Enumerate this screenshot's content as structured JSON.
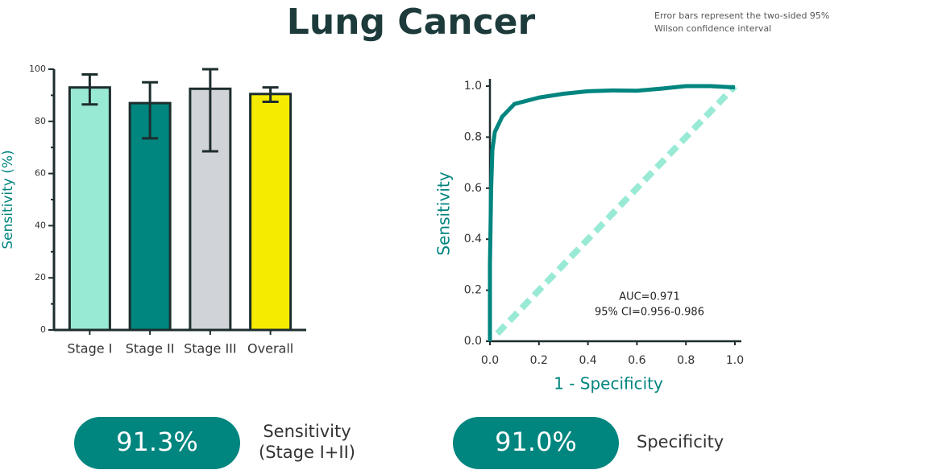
{
  "title": "Lung Cancer",
  "note": "Error bars represent the two-sided 95% Wilson confidence interval",
  "chart_data": [
    {
      "type": "bar",
      "ylabel": "Sensitivity (%)",
      "categories": [
        "Stage I",
        "Stage II",
        "Stage III",
        "Overall"
      ],
      "values": [
        93,
        87,
        92.5,
        90.5
      ],
      "ci_low": [
        86.5,
        73.5,
        68.5,
        87.5
      ],
      "ci_high": [
        98,
        95,
        100,
        93
      ],
      "colors": [
        "#99ead5",
        "#00857f",
        "#d0d3d8",
        "#f5eb00"
      ],
      "ylim": [
        0,
        100
      ],
      "yticks": [
        0,
        20,
        40,
        60,
        80,
        100
      ],
      "minor_yticks": [
        10,
        30,
        50,
        70,
        90
      ]
    },
    {
      "type": "line",
      "xlabel": "1 - Specificity",
      "ylabel": "Sensitivity",
      "series": [
        {
          "color": "#00857f",
          "dashed": false,
          "x": [
            0,
            0,
            0.005,
            0.01,
            0.02,
            0.05,
            0.1,
            0.2,
            0.3,
            0.4,
            0.5,
            0.6,
            0.7,
            0.8,
            0.9,
            1.0
          ],
          "values": [
            0,
            0.3,
            0.6,
            0.75,
            0.82,
            0.88,
            0.93,
            0.955,
            0.97,
            0.98,
            0.983,
            0.982,
            0.99,
            1.0,
            1.0,
            0.995
          ]
        },
        {
          "color": "#99ead5",
          "dashed": true,
          "x": [
            0.03,
            1.0
          ],
          "values": [
            0.03,
            1.0
          ]
        }
      ],
      "annotations": [
        "AUC=0.971",
        "95% CI=0.956-0.986"
      ],
      "xlim": [
        0,
        1
      ],
      "ylim": [
        0,
        1
      ],
      "xticks": [
        {
          "value": 0,
          "label": "0.0"
        },
        0.2,
        0.4,
        0.6,
        0.8,
        {
          "value": 1,
          "label": "1.0"
        }
      ],
      "yticks": [
        {
          "value": 0,
          "label": "0.0"
        },
        0.2,
        0.4,
        0.6,
        0.8,
        {
          "value": 1,
          "label": "1.0"
        }
      ]
    }
  ],
  "stats": [
    {
      "value": "91.3%",
      "label_lines": [
        "Sensitivity",
        "(Stage I+II)"
      ]
    },
    {
      "value": "91.0%",
      "label_lines": [
        "Specificity"
      ]
    }
  ]
}
